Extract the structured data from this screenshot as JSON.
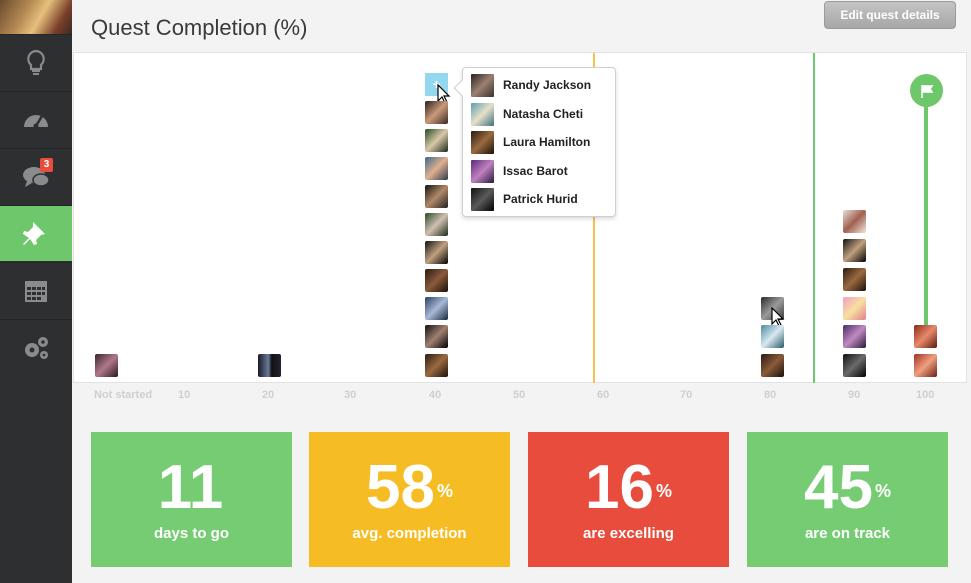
{
  "header": {
    "title": "Quest Completion (%)",
    "edit_label": "Edit quest details"
  },
  "sidebar": {
    "items": [
      {
        "name": "lightbulb-icon",
        "active": false
      },
      {
        "name": "dashboard-icon",
        "active": false
      },
      {
        "name": "chat-icon",
        "active": false,
        "badge": "3"
      },
      {
        "name": "pin-icon",
        "active": true
      },
      {
        "name": "calendar-icon",
        "active": false
      },
      {
        "name": "gears-icon",
        "active": false
      }
    ]
  },
  "chart": {
    "plus_label": "+",
    "axis_ticks": [
      "Not started",
      "10",
      "20",
      "30",
      "40",
      "50",
      "60",
      "70",
      "80",
      "90",
      "100"
    ],
    "avg_line_percent": 58,
    "on_track_line_percent": 84
  },
  "popover": {
    "people": [
      "Randy Jackson",
      "Natasha Cheti",
      "Laura Hamilton",
      "Issac Barot",
      "Patrick Hurid"
    ]
  },
  "stats": [
    {
      "value": "11",
      "suffix": "",
      "label": "days to go",
      "color": "#76cc73"
    },
    {
      "value": "58",
      "suffix": "%",
      "label": "avg. completion",
      "color": "#f5bd23"
    },
    {
      "value": "16",
      "suffix": "%",
      "label": "are excelling",
      "color": "#e84c3d"
    },
    {
      "value": "45",
      "suffix": "%",
      "label": "are on track",
      "color": "#76cc73"
    }
  ]
}
